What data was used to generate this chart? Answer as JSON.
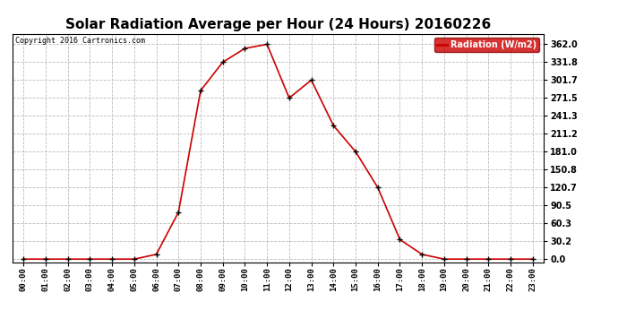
{
  "title": "Solar Radiation Average per Hour (24 Hours) 20160226",
  "copyright_text": "Copyright 2016 Cartronics.com",
  "legend_label": "Radiation (W/m2)",
  "hours": [
    "00:00",
    "01:00",
    "02:00",
    "03:00",
    "04:00",
    "05:00",
    "06:00",
    "07:00",
    "08:00",
    "09:00",
    "10:00",
    "11:00",
    "12:00",
    "13:00",
    "14:00",
    "15:00",
    "16:00",
    "17:00",
    "18:00",
    "19:00",
    "20:00",
    "21:00",
    "22:00",
    "23:00"
  ],
  "values": [
    0.0,
    0.0,
    0.0,
    0.0,
    0.0,
    0.0,
    8.0,
    79.0,
    284.0,
    331.8,
    355.0,
    362.0,
    271.5,
    301.7,
    225.0,
    181.0,
    120.7,
    33.0,
    8.0,
    0.0,
    0.0,
    0.0,
    0.0,
    0.0
  ],
  "line_color": "#cc0000",
  "marker_color": "#000000",
  "background_color": "#ffffff",
  "grid_color": "#bbbbbb",
  "yticks": [
    0.0,
    30.2,
    60.3,
    90.5,
    120.7,
    150.8,
    181.0,
    211.2,
    241.3,
    271.5,
    301.7,
    331.8,
    362.0
  ],
  "ylim": [
    -5.0,
    380.0
  ],
  "title_fontsize": 11,
  "legend_bg": "#cc0000",
  "legend_text_color": "#ffffff"
}
